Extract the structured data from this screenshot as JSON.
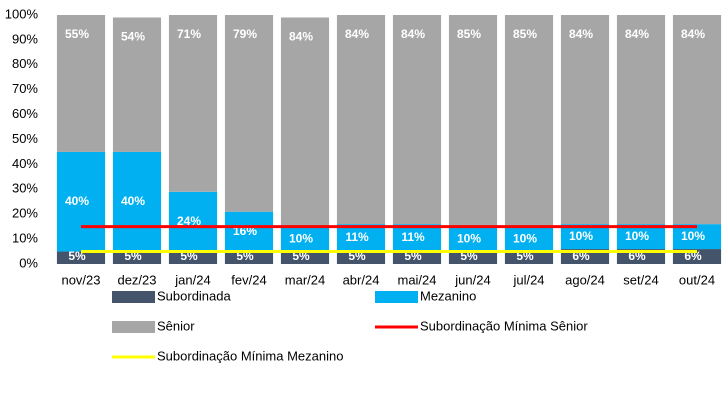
{
  "chart_data": {
    "type": "bar",
    "stacked": true,
    "categories": [
      "nov/23",
      "dez/23",
      "jan/24",
      "fev/24",
      "mar/24",
      "abr/24",
      "mai/24",
      "jun/24",
      "jul/24",
      "ago/24",
      "set/24",
      "out/24"
    ],
    "series": [
      {
        "name": "Subordinada",
        "type": "bar",
        "color": "#44546a",
        "values": [
          5,
          5,
          5,
          5,
          5,
          5,
          5,
          5,
          5,
          6,
          6,
          6
        ],
        "value_labels": [
          "5%",
          "5%",
          "5%",
          "5%",
          "5%",
          "5%",
          "5%",
          "5%",
          "5%",
          "6%",
          "6%",
          "6%"
        ]
      },
      {
        "name": "Mezanino",
        "type": "bar",
        "color": "#00b0f0",
        "values": [
          40,
          40,
          24,
          16,
          10,
          11,
          11,
          10,
          10,
          10,
          10,
          10
        ],
        "value_labels": [
          "40%",
          "40%",
          "24%",
          "16%",
          "10%",
          "11%",
          "11%",
          "10%",
          "10%",
          "10%",
          "10%",
          "10%"
        ]
      },
      {
        "name": "Sênior",
        "type": "bar",
        "color": "#a6a6a6",
        "values": [
          55,
          54,
          71,
          79,
          84,
          84,
          84,
          85,
          85,
          84,
          84,
          84
        ],
        "value_labels": [
          "55%",
          "54%",
          "71%",
          "79%",
          "84%",
          "84%",
          "84%",
          "85%",
          "85%",
          "84%",
          "84%",
          "84%"
        ]
      },
      {
        "name": "Subordinação Mínima Sênior",
        "type": "line",
        "color": "#ff0000",
        "values": [
          15,
          15,
          15,
          15,
          15,
          15,
          15,
          15,
          15,
          15,
          15,
          15
        ]
      },
      {
        "name": "Subordinação Mínima Mezanino",
        "type": "line",
        "color": "#ffff00",
        "values": [
          5,
          5,
          5,
          5,
          5,
          5,
          5,
          5,
          5,
          5,
          5,
          5
        ]
      }
    ],
    "ylim": [
      0,
      100
    ],
    "yticks": [
      {
        "value": 0,
        "label": "0%"
      },
      {
        "value": 10,
        "label": "10%"
      },
      {
        "value": 20,
        "label": "20%"
      },
      {
        "value": 30,
        "label": "30%"
      },
      {
        "value": 40,
        "label": "40%"
      },
      {
        "value": 50,
        "label": "50%"
      },
      {
        "value": 60,
        "label": "60%"
      },
      {
        "value": 70,
        "label": "70%"
      },
      {
        "value": 80,
        "label": "80%"
      },
      {
        "value": 90,
        "label": "90%"
      },
      {
        "value": 100,
        "label": "100%"
      }
    ],
    "grid": false
  }
}
